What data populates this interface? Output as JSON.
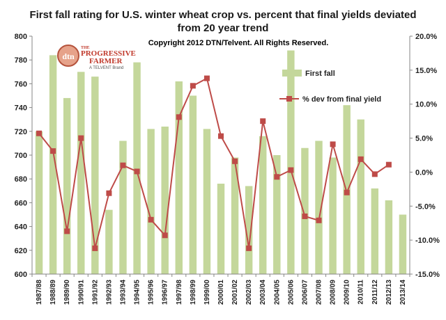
{
  "chart_data": {
    "type": "bar",
    "title_lines": [
      "First fall rating for U.S. winter wheat crop vs. percent that final yields deviated",
      "from 20 year trend"
    ],
    "copyright": "Copyright 2012 DTN/Telvent. All Rights Reserved.",
    "categories": [
      "1987/88",
      "1988/89",
      "1989/90",
      "1990/91",
      "1991/92",
      "1992/93",
      "1993/94",
      "1994/95",
      "1995/96",
      "1996/97",
      "1997/98",
      "1998/99",
      "1999/00",
      "2000/01",
      "2001/02",
      "2002/03",
      "2003/04",
      "2004/05",
      "2005/06",
      "2006/07",
      "2007/08",
      "2008/09",
      "2009/10",
      "2010/11",
      "2011/12",
      "2012/13",
      "2013/14"
    ],
    "y_left": {
      "min": 600,
      "max": 800,
      "step": 20,
      "ticks": [
        "600",
        "620",
        "640",
        "660",
        "680",
        "700",
        "720",
        "740",
        "760",
        "780",
        "800"
      ]
    },
    "y_right": {
      "min": -15,
      "max": 20,
      "step": 5,
      "ticks": [
        "-15.0%",
        "-10.0%",
        "-5.0%",
        "0.0%",
        "5.0%",
        "10.0%",
        "15.0%",
        "20.0%"
      ]
    },
    "series": [
      {
        "name": "First fall",
        "type": "bar",
        "axis": "left",
        "color": "#c4d79b",
        "values": [
          720,
          784,
          748,
          770,
          766,
          654,
          712,
          778,
          722,
          724,
          762,
          750,
          722,
          676,
          698,
          674,
          716,
          700,
          788,
          706,
          712,
          698,
          742,
          730,
          672,
          662,
          650
        ]
      },
      {
        "name": "% dev from final yield",
        "type": "line",
        "axis": "right",
        "color": "#be4b48",
        "values": [
          5.7,
          3.1,
          -8.7,
          5.0,
          -11.2,
          -3.1,
          1.0,
          0.1,
          -7.0,
          -9.3,
          8.1,
          12.7,
          13.8,
          5.3,
          1.6,
          -11.2,
          7.5,
          -0.7,
          0.3,
          -6.5,
          -7.1,
          4.1,
          -3.0,
          1.9,
          -0.3,
          1.1,
          null
        ]
      }
    ],
    "legend_position": "right",
    "grid": false
  },
  "logo": {
    "badge": "dtn",
    "line1": "THE",
    "line2": "PROGRESSIVE",
    "line3": "FARMER",
    "tagline": "A TELVENT Brand"
  }
}
